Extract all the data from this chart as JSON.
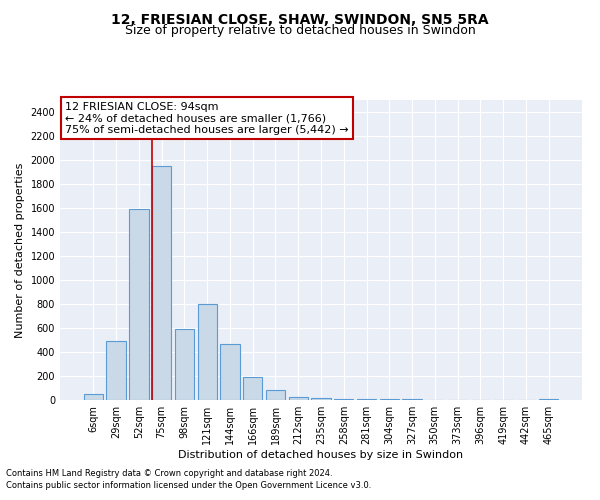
{
  "title": "12, FRIESIAN CLOSE, SHAW, SWINDON, SN5 5RA",
  "subtitle": "Size of property relative to detached houses in Swindon",
  "xlabel": "Distribution of detached houses by size in Swindon",
  "ylabel": "Number of detached properties",
  "categories": [
    "6sqm",
    "29sqm",
    "52sqm",
    "75sqm",
    "98sqm",
    "121sqm",
    "144sqm",
    "166sqm",
    "189sqm",
    "212sqm",
    "235sqm",
    "258sqm",
    "281sqm",
    "304sqm",
    "327sqm",
    "350sqm",
    "373sqm",
    "396sqm",
    "419sqm",
    "442sqm",
    "465sqm"
  ],
  "values": [
    50,
    490,
    1590,
    1950,
    590,
    800,
    470,
    195,
    85,
    28,
    20,
    5,
    5,
    5,
    5,
    0,
    0,
    0,
    0,
    0,
    5
  ],
  "bar_color": "#c9d9e8",
  "bar_edge_color": "#5b9bd5",
  "vline_x_index": 3,
  "vline_color": "#c00000",
  "annotation_line1": "12 FRIESIAN CLOSE: 94sqm",
  "annotation_line2": "← 24% of detached houses are smaller (1,766)",
  "annotation_line3": "75% of semi-detached houses are larger (5,442) →",
  "annotation_box_edge_color": "#c00000",
  "annotation_box_face_color": "#ffffff",
  "ylim": [
    0,
    2500
  ],
  "yticks": [
    0,
    200,
    400,
    600,
    800,
    1000,
    1200,
    1400,
    1600,
    1800,
    2000,
    2200,
    2400
  ],
  "footer_line1": "Contains HM Land Registry data © Crown copyright and database right 2024.",
  "footer_line2": "Contains public sector information licensed under the Open Government Licence v3.0.",
  "background_color": "#ffffff",
  "plot_bg_color": "#eaeff7",
  "grid_color": "#ffffff",
  "title_fontsize": 10,
  "subtitle_fontsize": 9,
  "axis_label_fontsize": 8,
  "tick_fontsize": 7,
  "annotation_fontsize": 8,
  "footer_fontsize": 6
}
